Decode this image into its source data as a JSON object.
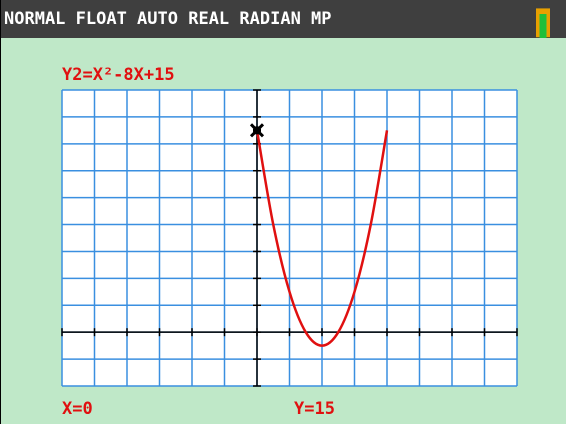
{
  "status_bar": {
    "modes": "NORMAL FLOAT AUTO REAL RADIAN MP"
  },
  "chart_data": {
    "type": "line",
    "title": "Y2=X²-8X+15",
    "x": [
      0,
      1,
      2,
      3,
      4,
      5,
      6,
      7,
      8
    ],
    "values": [
      15,
      8,
      3,
      0,
      -1,
      0,
      3,
      8,
      15
    ],
    "color": "#e01010",
    "xlim": [
      -12,
      16
    ],
    "ylim": [
      -4,
      18
    ],
    "xticks": [
      -12,
      -10,
      -8,
      -6,
      -4,
      -2,
      0,
      2,
      4,
      6,
      8,
      10,
      12,
      14,
      16
    ],
    "yticks": [
      -4,
      -2,
      0,
      2,
      4,
      6,
      8,
      10,
      12,
      14,
      16,
      18
    ],
    "grid": true,
    "cursor": {
      "x": 0,
      "y": 15,
      "x_label": "X=0",
      "y_label": "Y=15"
    }
  }
}
